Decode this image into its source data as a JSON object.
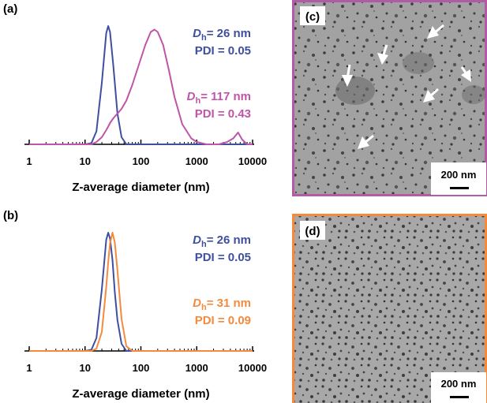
{
  "chart_data": [
    {
      "type": "line",
      "title": "(a)",
      "xlabel": "Z-average diameter (nm)",
      "xlog": true,
      "xlim": [
        1,
        10000
      ],
      "xticks": [
        1,
        10,
        100,
        1000,
        10000
      ],
      "x": [
        1,
        10,
        13,
        16,
        20,
        24,
        26,
        28,
        32,
        38,
        45,
        55,
        70,
        90,
        120,
        150,
        175,
        200,
        250,
        320,
        400,
        550,
        800,
        1000,
        1500,
        2500,
        3500,
        4500,
        5500,
        6500,
        8000,
        10000
      ],
      "series": [
        {
          "name": "Dh= 26 nm",
          "color": "#3f4fa0",
          "annotation": {
            "symbol": "D",
            "subscript": "h",
            "text": "= 26 nm",
            "pdi": "PDI = 0.05"
          },
          "values": [
            0,
            0,
            1,
            11,
            52,
            94,
            100,
            95,
            67,
            26,
            6,
            0,
            0,
            0,
            0,
            0,
            0,
            0,
            0,
            0,
            0,
            0,
            0,
            0,
            0,
            0,
            0,
            0,
            0,
            0,
            0,
            0
          ]
        },
        {
          "name": "Dh= 117 nm",
          "color": "#c054a8",
          "annotation": {
            "symbol": "D",
            "subscript": "h",
            "text": "= 117 nm",
            "pdi": "PDI = 0.43"
          },
          "values": [
            0,
            0,
            0,
            2,
            6,
            12,
            15,
            18,
            22,
            26,
            30,
            37,
            50,
            66,
            84,
            95,
            97,
            95,
            84,
            62,
            40,
            17,
            5,
            2,
            0,
            0,
            2,
            5,
            10,
            4,
            0,
            0
          ]
        }
      ]
    },
    {
      "type": "line",
      "title": "(b)",
      "xlabel": "Z-average diameter (nm)",
      "xlog": true,
      "xlim": [
        1,
        10000
      ],
      "xticks": [
        1,
        10,
        100,
        1000,
        10000
      ],
      "x": [
        1,
        10,
        13,
        16,
        20,
        24,
        26,
        28,
        31,
        34,
        38,
        45,
        55,
        70,
        100,
        10000
      ],
      "series": [
        {
          "name": "Dh= 26 nm",
          "color": "#3f4fa0",
          "annotation": {
            "symbol": "D",
            "subscript": "h",
            "text": "= 26 nm",
            "pdi": "PDI = 0.05"
          },
          "values": [
            0,
            0,
            1,
            11,
            52,
            94,
            100,
            95,
            77,
            50,
            26,
            6,
            0,
            0,
            0,
            0
          ]
        },
        {
          "name": "Dh= 31 nm",
          "color": "#f58a3c",
          "annotation": {
            "symbol": "D",
            "subscript": "h",
            "text": "= 31 nm",
            "pdi": "PDI = 0.09"
          },
          "values": [
            0,
            0,
            0,
            2,
            16,
            54,
            75,
            91,
            100,
            92,
            68,
            27,
            4,
            0,
            0,
            0
          ]
        }
      ]
    }
  ],
  "images": [
    {
      "label": "(c)",
      "scale_bar": "200 nm"
    },
    {
      "label": "(d)",
      "scale_bar": "200 nm"
    }
  ]
}
